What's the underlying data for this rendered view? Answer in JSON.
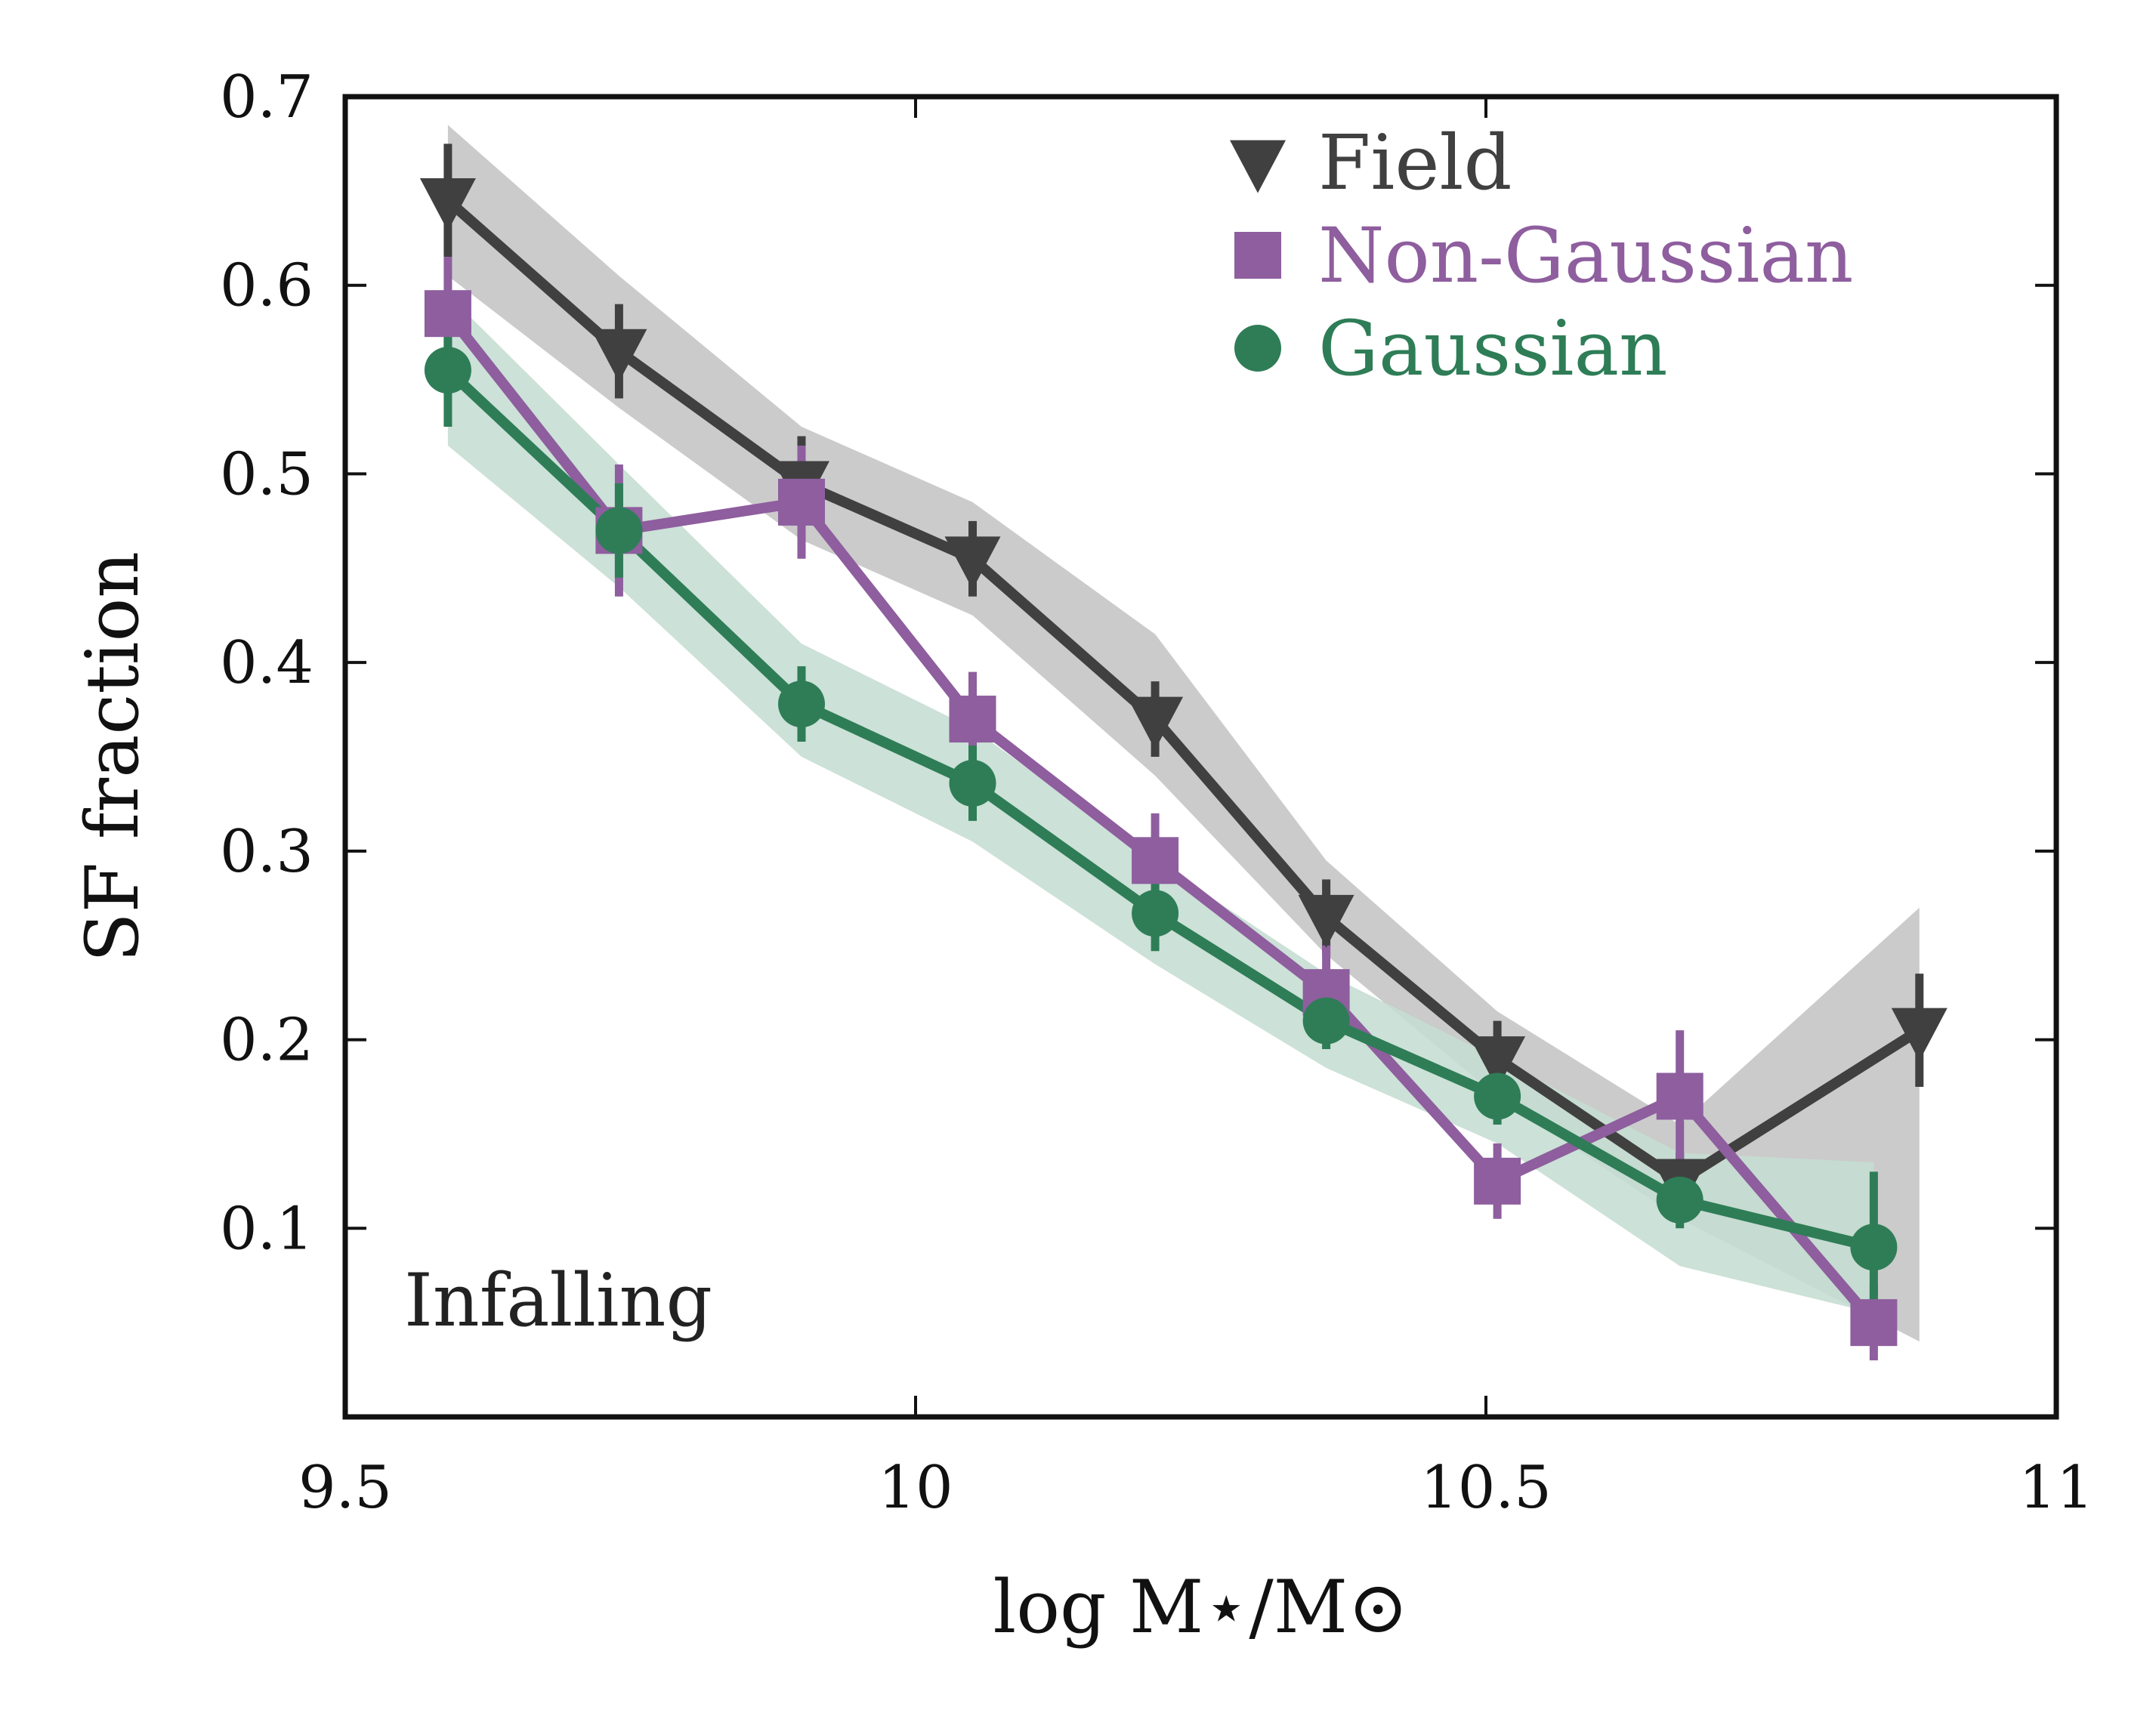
{
  "chart_data": {
    "type": "line",
    "annotation": "Infalling",
    "xlabel": "log M⋆/M⊙",
    "ylabel": "SF fraction",
    "xlim": [
      9.5,
      11.0
    ],
    "ylim": [
      0.0,
      0.7
    ],
    "x_ticks": [
      9.5,
      10.0,
      10.5,
      11.0
    ],
    "x_tick_labels": [
      "9.5",
      "10",
      "10.5",
      "11"
    ],
    "y_ticks": [
      0.1,
      0.2,
      0.3,
      0.4,
      0.5,
      0.6,
      0.7
    ],
    "y_tick_labels": [
      "0.1",
      "0.2",
      "0.3",
      "0.4",
      "0.5",
      "0.6",
      "0.7"
    ],
    "legend_position": "top-right",
    "grid": false,
    "series": [
      {
        "name": "Field",
        "marker": "triangle-down",
        "color": "#404040",
        "band_color": "#c4c4c4",
        "x": [
          9.59,
          9.74,
          9.9,
          10.05,
          10.21,
          10.36,
          10.51,
          10.67,
          10.88
        ],
        "y": [
          0.645,
          0.565,
          0.495,
          0.455,
          0.37,
          0.265,
          0.19,
          0.125,
          0.205
        ],
        "yerr": [
          0.03,
          0.025,
          0.025,
          0.02,
          0.02,
          0.02,
          0.02,
          0.015,
          0.03
        ],
        "band_low": [
          0.605,
          0.535,
          0.465,
          0.425,
          0.34,
          0.245,
          0.17,
          0.105,
          0.04
        ],
        "band_high": [
          0.685,
          0.605,
          0.525,
          0.485,
          0.415,
          0.295,
          0.215,
          0.155,
          0.27
        ]
      },
      {
        "name": "Non-Gaussian",
        "marker": "square",
        "color": "#8e5e9e",
        "x": [
          9.59,
          9.74,
          9.9,
          10.05,
          10.21,
          10.36,
          10.51,
          10.67,
          10.84
        ],
        "y": [
          0.585,
          0.47,
          0.485,
          0.37,
          0.295,
          0.225,
          0.125,
          0.17,
          0.05
        ],
        "yerr": [
          0.03,
          0.035,
          0.03,
          0.025,
          0.025,
          0.025,
          0.02,
          0.035,
          0.02
        ]
      },
      {
        "name": "Gaussian",
        "marker": "circle",
        "color": "#2e7d57",
        "band_color": "#c5ddd2",
        "x": [
          9.59,
          9.74,
          9.9,
          10.05,
          10.21,
          10.36,
          10.51,
          10.67,
          10.84
        ],
        "y": [
          0.555,
          0.47,
          0.378,
          0.336,
          0.267,
          0.21,
          0.17,
          0.115,
          0.09
        ],
        "yerr": [
          0.03,
          0.025,
          0.02,
          0.02,
          0.02,
          0.015,
          0.015,
          0.015,
          0.04
        ],
        "band_low": [
          0.515,
          0.44,
          0.35,
          0.305,
          0.24,
          0.185,
          0.145,
          0.08,
          0.055
        ],
        "band_high": [
          0.595,
          0.505,
          0.41,
          0.365,
          0.295,
          0.235,
          0.19,
          0.14,
          0.135
        ]
      }
    ]
  }
}
